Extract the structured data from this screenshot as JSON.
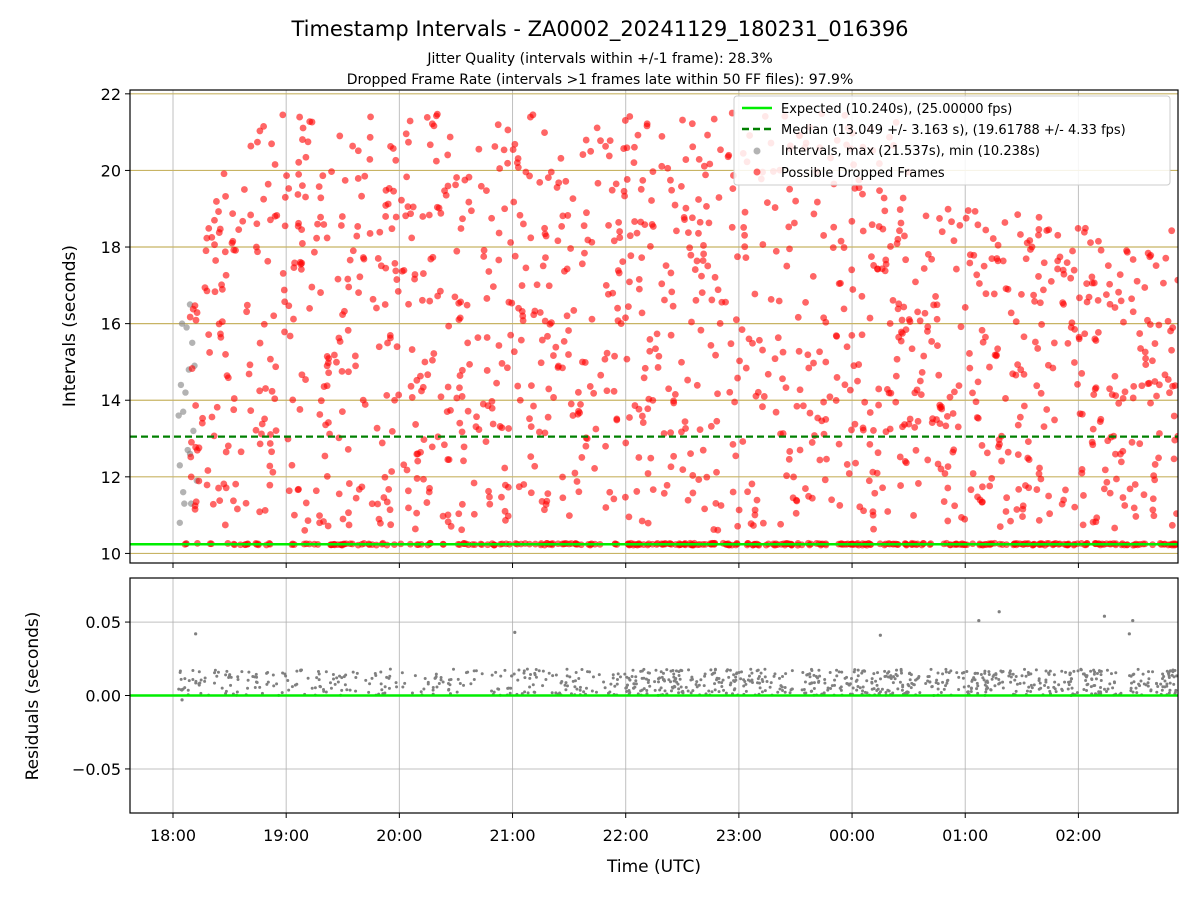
{
  "figure": {
    "title": "Timestamp Intervals - ZA0002_20241129_180231_016396",
    "subtitle_1": "Jitter Quality (intervals within +/-1 frame): 28.3%",
    "subtitle_2": "Dropped Frame Rate (intervals >1 frames late within 50 FF files): 97.9%"
  },
  "colors": {
    "expected": "#00ee00",
    "median": "#008000",
    "intervals": "#808080",
    "dropped": "#ff0000",
    "hgrid_top": "#c8b464",
    "grid": "#b0b0b0"
  },
  "chart_data": [
    {
      "type": "scatter",
      "ylabel": "Intervals (seconds)",
      "xlabel": "",
      "x_tick_labels": [
        "18:00",
        "19:00",
        "20:00",
        "21:00",
        "22:00",
        "23:00",
        "00:00",
        "01:00",
        "02:00"
      ],
      "x_tick_hours": [
        18,
        19,
        20,
        21,
        22,
        23,
        24,
        25,
        26
      ],
      "xlim_hours": [
        17.62,
        26.88
      ],
      "ylim": [
        9.75,
        22.1
      ],
      "y_ticks": [
        10,
        12,
        14,
        16,
        18,
        20,
        22
      ],
      "y_tick_labels": [
        "10",
        "12",
        "14",
        "16",
        "18",
        "20",
        "22"
      ],
      "grid": "horizontal + vertical",
      "legend": {
        "placement": "top-right",
        "entries": [
          {
            "label": "Expected (10.240s), (25.00000 fps)",
            "kind": "line"
          },
          {
            "label": "Median (13.049 +/- 3.163 s), (19.61788 +/- 4.33 fps)",
            "kind": "dashed"
          },
          {
            "label": "Intervals, max (21.537s), min (10.238s)",
            "kind": "gray-marker"
          },
          {
            "label": "Possible Dropped Frames",
            "kind": "red-marker"
          }
        ]
      },
      "expected_interval": 10.24,
      "median_interval": 13.049,
      "max_interval": 21.537,
      "min_interval": 10.238,
      "gray_points": [
        [
          18.05,
          13.6
        ],
        [
          18.06,
          12.3
        ],
        [
          18.07,
          14.4
        ],
        [
          18.08,
          16.0
        ],
        [
          18.09,
          13.7
        ],
        [
          18.1,
          11.3
        ],
        [
          18.11,
          14.2
        ],
        [
          18.12,
          15.9
        ],
        [
          18.13,
          12.7
        ],
        [
          18.14,
          14.8
        ],
        [
          18.15,
          16.5
        ],
        [
          18.16,
          11.3
        ],
        [
          18.17,
          15.5
        ],
        [
          18.18,
          13.2
        ],
        [
          18.06,
          10.8
        ],
        [
          18.09,
          11.6
        ],
        [
          18.12,
          10.25
        ],
        [
          18.15,
          12.6
        ],
        [
          18.19,
          14.9
        ],
        [
          18.21,
          11.9
        ]
      ],
      "red_band_start_hour": 18.1,
      "red_band_end_hour": 26.88,
      "red_band_value": 10.24,
      "red_scatter_start_hour": 18.15,
      "red_scatter_end_hour": 26.88,
      "red_scatter_min": 10.6,
      "red_scatter_max": 21.5
    },
    {
      "type": "scatter",
      "ylabel": "Residuals (seconds)",
      "xlabel": "Time (UTC)",
      "x_tick_labels": [
        "18:00",
        "19:00",
        "20:00",
        "21:00",
        "22:00",
        "23:00",
        "00:00",
        "01:00",
        "02:00"
      ],
      "x_tick_hours": [
        18,
        19,
        20,
        21,
        22,
        23,
        24,
        25,
        26
      ],
      "xlim_hours": [
        17.62,
        26.88
      ],
      "ylim": [
        -0.08,
        0.08
      ],
      "y_ticks": [
        -0.05,
        0.0,
        0.05
      ],
      "y_tick_labels": [
        "−0.05",
        "0.00",
        "0.05"
      ],
      "grid": "on",
      "zero_line": 0.0,
      "outliers": [
        [
          18.08,
          -0.003
        ],
        [
          18.2,
          0.042
        ],
        [
          21.02,
          0.043
        ],
        [
          24.25,
          0.041
        ],
        [
          25.12,
          0.051
        ],
        [
          25.3,
          0.057
        ],
        [
          26.23,
          0.054
        ],
        [
          26.45,
          0.042
        ],
        [
          26.48,
          0.051
        ]
      ],
      "residual_min": 0.0,
      "residual_max": 0.018,
      "residual_start_hour": 18.05,
      "residual_end_hour": 26.88
    }
  ]
}
